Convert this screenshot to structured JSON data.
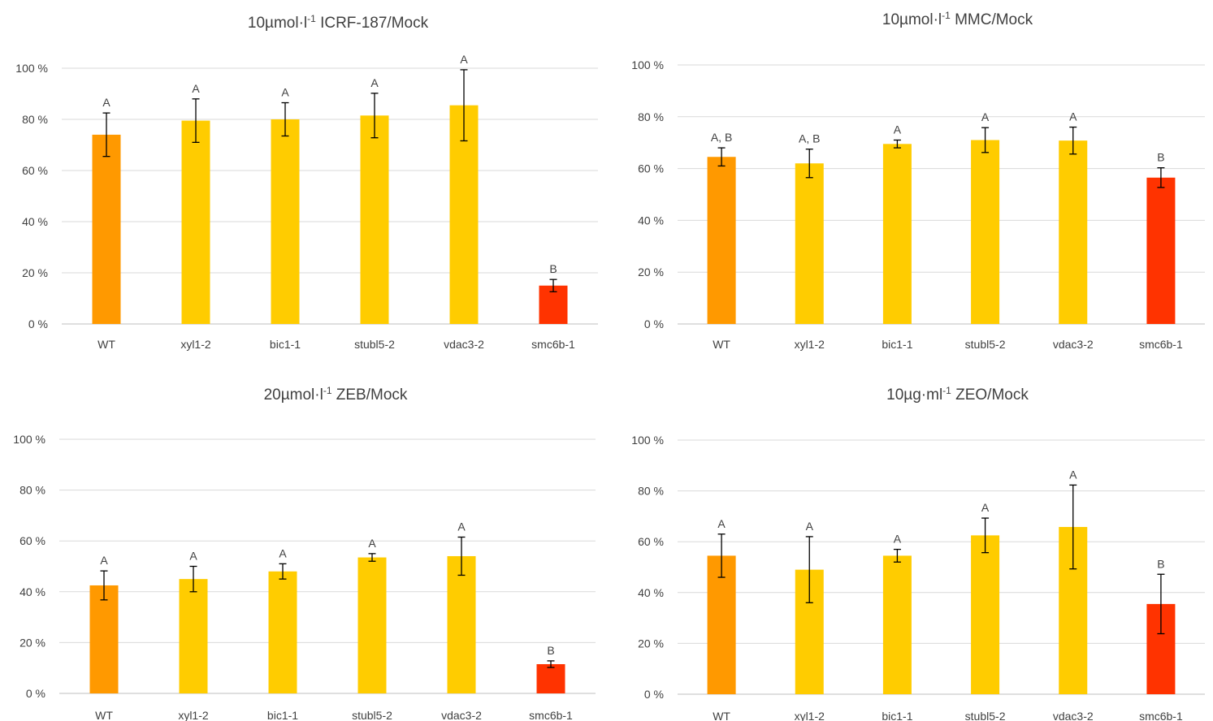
{
  "colors": {
    "wt": "#ff9900",
    "mutant": "#ffcc00",
    "smc6b": "#ff3300"
  },
  "chart_data": [
    {
      "type": "bar",
      "title": {
        "pre": "10µmol·l",
        "sup": "-1",
        "post": " ICRF-187/Mock"
      },
      "categories": [
        "WT",
        "xyl1-2",
        "bic1-1",
        "stubl5-2",
        "vdac3-2",
        "smc6b-1"
      ],
      "values": [
        74,
        79.5,
        80,
        81.5,
        85.5,
        15
      ],
      "errors": [
        8.5,
        8.5,
        6.5,
        8.7,
        13.9,
        2.4
      ],
      "labels": [
        "A",
        "A",
        "A",
        "A",
        "A",
        "B"
      ],
      "ylim": [
        0,
        100
      ],
      "yticks": [
        0,
        20,
        40,
        60,
        80,
        100
      ],
      "ytick_labels": [
        "0 %",
        "20 %",
        "40 %",
        "60 %",
        "80 %",
        "100 %"
      ],
      "grid": true
    },
    {
      "type": "bar",
      "title": {
        "pre": "10µmol·l",
        "sup": "-1",
        "post": " MMC/Mock"
      },
      "categories": [
        "WT",
        "xyl1-2",
        "bic1-1",
        "stubl5-2",
        "vdac3-2",
        "smc6b-1"
      ],
      "values": [
        64.5,
        62,
        69.5,
        71,
        70.8,
        56.5
      ],
      "errors": [
        3.5,
        5.5,
        1.5,
        4.8,
        5.2,
        3.8
      ],
      "labels": [
        "A, B",
        "A, B",
        "A",
        "A",
        "A",
        "B"
      ],
      "ylim": [
        0,
        100
      ],
      "yticks": [
        0,
        20,
        40,
        60,
        80,
        100
      ],
      "ytick_labels": [
        "0 %",
        "20 %",
        "40 %",
        "60 %",
        "80 %",
        "100 %"
      ],
      "grid": true
    },
    {
      "type": "bar",
      "title": {
        "pre": "20µmol·l",
        "sup": "-1",
        "post": " ZEB/Mock"
      },
      "categories": [
        "WT",
        "xyl1-2",
        "bic1-1",
        "stubl5-2",
        "vdac3-2",
        "smc6b-1"
      ],
      "values": [
        42.5,
        45,
        48,
        53.5,
        54,
        11.5
      ],
      "errors": [
        5.7,
        5,
        3,
        1.5,
        7.5,
        1.3
      ],
      "labels": [
        "A",
        "A",
        "A",
        "A",
        "A",
        "B"
      ],
      "ylim": [
        0,
        100
      ],
      "yticks": [
        0,
        20,
        40,
        60,
        80,
        100
      ],
      "ytick_labels": [
        "0 %",
        "20 %",
        "40 %",
        "60 %",
        "80 %",
        "100 %"
      ],
      "grid": true
    },
    {
      "type": "bar",
      "title": {
        "pre": "10µg·ml",
        "sup": "-1",
        "post": " ZEO/Mock"
      },
      "categories": [
        "WT",
        "xyl1-2",
        "bic1-1",
        "stubl5-2",
        "vdac3-2",
        "smc6b-1"
      ],
      "values": [
        54.5,
        49,
        54.5,
        62.5,
        65.8,
        35.5
      ],
      "errors": [
        8.5,
        13,
        2.5,
        6.8,
        16.5,
        11.7
      ],
      "labels": [
        "A",
        "A",
        "A",
        "A",
        "A",
        "B"
      ],
      "ylim": [
        0,
        100
      ],
      "yticks": [
        0,
        20,
        40,
        60,
        80,
        100
      ],
      "ytick_labels": [
        "0 %",
        "20 %",
        "40 %",
        "60 %",
        "80 %",
        "100 %"
      ],
      "grid": true
    }
  ]
}
